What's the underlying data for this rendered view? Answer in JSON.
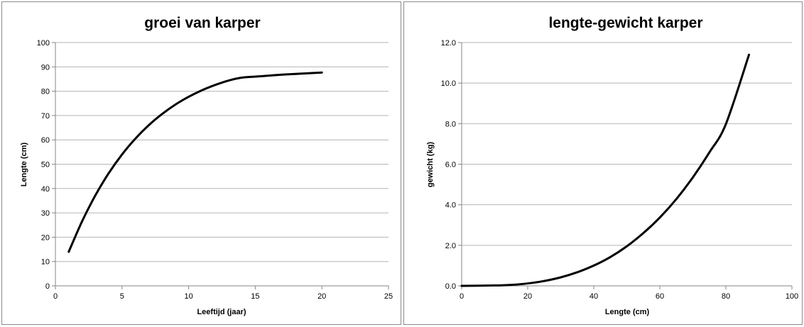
{
  "chart_data": [
    {
      "type": "line",
      "title": "groei van karper",
      "xlabel": "Leeftijd (jaar)",
      "ylabel": "Lengte (cm)",
      "xlim": [
        0,
        25
      ],
      "ylim": [
        0,
        100
      ],
      "xticks": [
        0,
        5,
        10,
        15,
        20,
        25
      ],
      "yticks": [
        0,
        10,
        20,
        30,
        40,
        50,
        60,
        70,
        80,
        90,
        100
      ],
      "grid": "horizontal",
      "series": [
        {
          "x": [
            1,
            2,
            3,
            4,
            5,
            6,
            7,
            8,
            9,
            10,
            11,
            12,
            13,
            14,
            15,
            16,
            17,
            18,
            19,
            20
          ],
          "y": [
            14.0,
            26.5,
            37.2,
            46.3,
            54.0,
            60.5,
            66.0,
            70.6,
            74.5,
            77.7,
            80.4,
            82.6,
            84.4,
            85.6,
            86.0,
            86.4,
            86.8,
            87.1,
            87.4,
            87.7
          ]
        }
      ],
      "line_color": "#000000"
    },
    {
      "type": "line",
      "title": "lengte-gewicht karper",
      "xlabel": "Lengte (cm)",
      "ylabel": "gewicht (kg)",
      "xlim": [
        0,
        100
      ],
      "ylim": [
        0,
        12
      ],
      "xticks": [
        0,
        20,
        40,
        60,
        80,
        100
      ],
      "yticks": [
        "0.0",
        "2.0",
        "4.0",
        "6.0",
        "8.0",
        "10.0",
        "12.0"
      ],
      "grid": "horizontal",
      "series": [
        {
          "x": [
            0,
            10,
            15,
            20,
            25,
            30,
            35,
            40,
            45,
            50,
            55,
            60,
            65,
            70,
            75,
            80,
            87
          ],
          "y": [
            0.0,
            0.02,
            0.05,
            0.12,
            0.24,
            0.42,
            0.67,
            1.0,
            1.42,
            1.95,
            2.6,
            3.37,
            4.28,
            5.35,
            6.58,
            7.98,
            11.4
          ]
        }
      ],
      "line_color": "#000000"
    }
  ]
}
